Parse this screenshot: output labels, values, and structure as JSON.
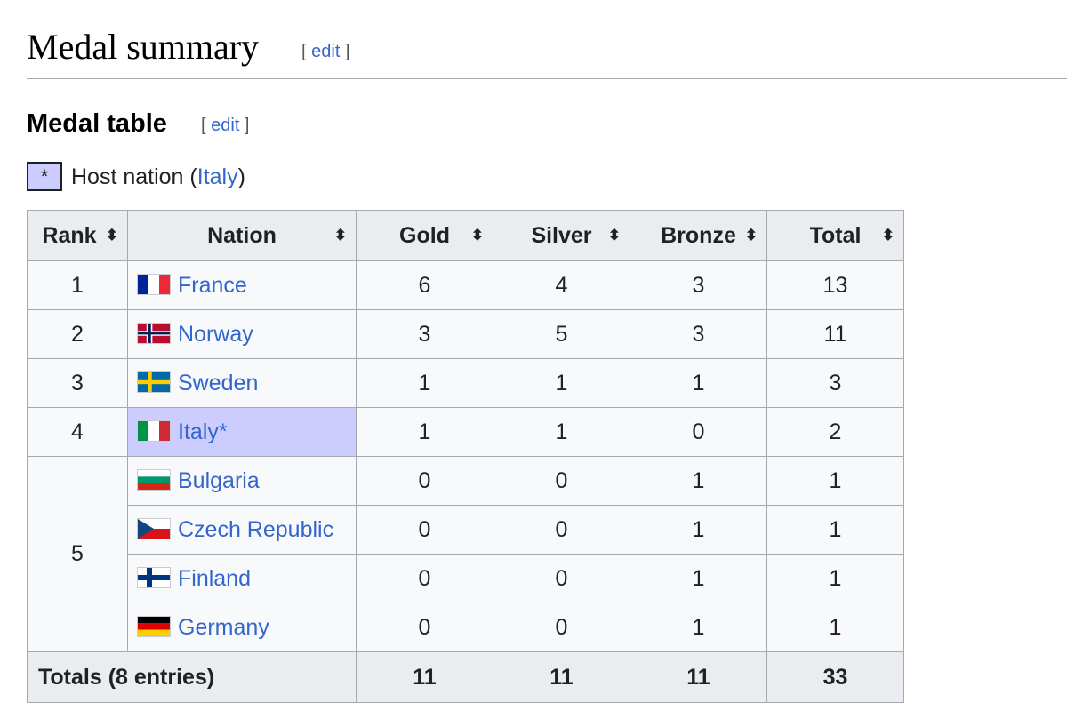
{
  "section": {
    "title": "Medal summary",
    "edit_open": "[ ",
    "edit_label": "edit",
    "edit_close": " ]"
  },
  "subsection": {
    "title": "Medal table",
    "edit_open": "[ ",
    "edit_label": "edit",
    "edit_close": " ]"
  },
  "legend": {
    "marker": "*",
    "text_prefix": "Host nation (",
    "link": "Italy",
    "text_suffix": ")"
  },
  "table": {
    "headers": {
      "rank": "Rank",
      "nation": "Nation",
      "gold": "Gold",
      "silver": "Silver",
      "bronze": "Bronze",
      "total": "Total"
    },
    "sort_glyph": "⬍",
    "rows": [
      {
        "rank": "1",
        "nation": "France",
        "gold": "6",
        "silver": "4",
        "bronze": "3",
        "total": "13"
      },
      {
        "rank": "2",
        "nation": "Norway",
        "gold": "3",
        "silver": "5",
        "bronze": "3",
        "total": "11"
      },
      {
        "rank": "3",
        "nation": "Sweden",
        "gold": "1",
        "silver": "1",
        "bronze": "1",
        "total": "3"
      },
      {
        "rank": "4",
        "nation": "Italy*",
        "gold": "1",
        "silver": "1",
        "bronze": "0",
        "total": "2"
      },
      {
        "rank": "5",
        "nation": "Bulgaria",
        "gold": "0",
        "silver": "0",
        "bronze": "1",
        "total": "1"
      },
      {
        "rank": "",
        "nation": "Czech Republic",
        "gold": "0",
        "silver": "0",
        "bronze": "1",
        "total": "1"
      },
      {
        "rank": "",
        "nation": "Finland",
        "gold": "0",
        "silver": "0",
        "bronze": "1",
        "total": "1"
      },
      {
        "rank": "",
        "nation": "Germany",
        "gold": "0",
        "silver": "0",
        "bronze": "1",
        "total": "1"
      }
    ],
    "totals": {
      "label": "Totals (8 entries)",
      "gold": "11",
      "silver": "11",
      "bronze": "11",
      "total": "33"
    }
  },
  "colors": {
    "gold": "#ffd700",
    "silver": "#c0c0c0",
    "bronze": "#cc9966",
    "host": "#ccccff",
    "link": "#3366cc"
  },
  "icons": [
    "sort-icon",
    "france-flag-icon",
    "norway-flag-icon",
    "sweden-flag-icon",
    "italy-flag-icon",
    "bulgaria-flag-icon",
    "czech-republic-flag-icon",
    "finland-flag-icon",
    "germany-flag-icon"
  ]
}
